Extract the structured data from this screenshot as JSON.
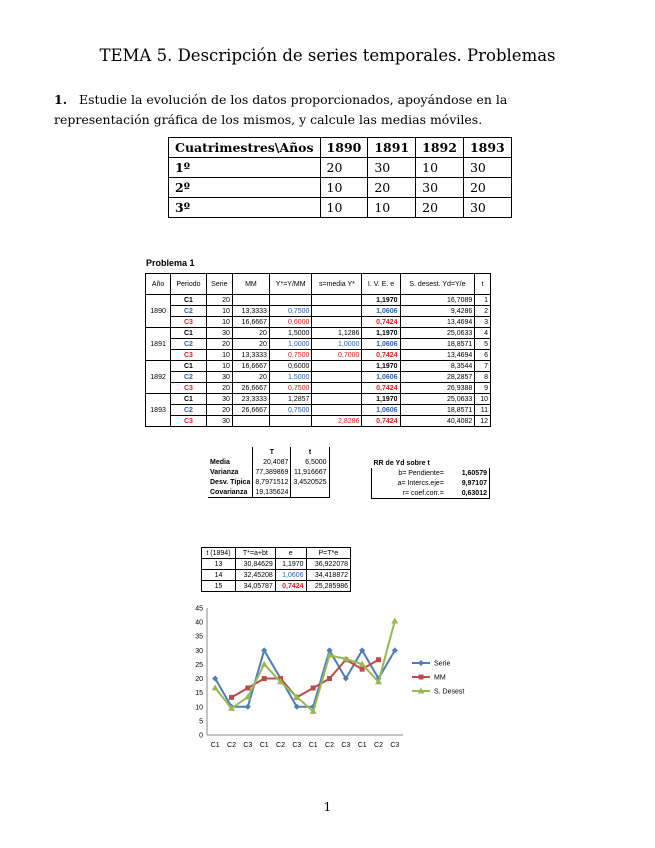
{
  "title": "TEMA 5. Descripción de series temporales. Problemas",
  "problem1": {
    "number": "1.",
    "text": "Estudie la evolución de los datos proporcionados, apoyándose en la representación gráfica de los mismos, y calcule las medias móviles."
  },
  "data_table": {
    "header": [
      "Cuatrimestres\\Años",
      "1890",
      "1891",
      "1892",
      "1893"
    ],
    "rows": [
      [
        "1º",
        "20",
        "30",
        "10",
        "30"
      ],
      [
        "2º",
        "10",
        "20",
        "30",
        "20"
      ],
      [
        "3º",
        "10",
        "10",
        "20",
        "30"
      ]
    ]
  },
  "sheet": {
    "title": "Problema 1",
    "headers": [
      "Año",
      "Periodo",
      "Serie",
      "MM",
      "Y*=Y/MM",
      "s=media Y*",
      "I. V. E. e",
      "S. desest. Yd=Y/e",
      "t"
    ],
    "years": [
      "1890",
      "1891",
      "1892",
      "1893"
    ],
    "rows": [
      [
        "C1",
        "20",
        "",
        "",
        "",
        "1,1970",
        "16,7089",
        "1"
      ],
      [
        "C2",
        "10",
        "13,3333",
        "0,7500",
        "",
        "1,0606",
        "9,4286",
        "2"
      ],
      [
        "C3",
        "10",
        "16,6667",
        "0,6000",
        "",
        "0,7424",
        "13,4694",
        "3"
      ],
      [
        "C1",
        "30",
        "20",
        "1,5000",
        "1,1286",
        "1,1970",
        "25,0633",
        "4"
      ],
      [
        "C2",
        "20",
        "20",
        "1,0000",
        "1,0000",
        "1,0606",
        "18,8571",
        "5"
      ],
      [
        "C3",
        "10",
        "13,3333",
        "0,7500",
        "0,7000",
        "0,7424",
        "13,4694",
        "6"
      ],
      [
        "C1",
        "10",
        "16,6667",
        "0,6000",
        "",
        "1,1970",
        "8,3544",
        "7"
      ],
      [
        "C2",
        "30",
        "20",
        "1,5000",
        "",
        "1,0606",
        "28,2857",
        "8"
      ],
      [
        "C3",
        "20",
        "26,6667",
        "0,7500",
        "",
        "0,7424",
        "26,9388",
        "9"
      ],
      [
        "C1",
        "30",
        "23,3333",
        "1,2857",
        "",
        "1,1970",
        "25,0633",
        "10"
      ],
      [
        "C2",
        "20",
        "26,6667",
        "0,7500",
        "",
        "1,0606",
        "18,8571",
        "11"
      ],
      [
        "C3",
        "30",
        "",
        "",
        "2,8286",
        "0,7424",
        "40,4082",
        "12"
      ]
    ]
  },
  "stats": {
    "headers": [
      "",
      "T",
      "t"
    ],
    "rows": [
      [
        "Media",
        "20,4087",
        "6,5000"
      ],
      [
        "Varianza",
        "77,389869",
        "11,916667"
      ],
      [
        "Desv. Típica",
        "8,7971512",
        "3,4520525"
      ],
      [
        "Covarianza",
        "19,135624",
        ""
      ]
    ]
  },
  "regression": {
    "title": "RR de Yd sobre t",
    "rows": [
      [
        "b= Pendiente=",
        "1,60579"
      ],
      [
        "a= Intercs.eje=",
        "9,97107"
      ],
      [
        "r= coef.corr.=",
        "0,63012"
      ]
    ]
  },
  "forecast": {
    "headers": [
      "t (1894)",
      "T*=a+bt",
      "e",
      "P=T*e"
    ],
    "rows": [
      [
        "13",
        "30,84629",
        "1,1970",
        "36,922078"
      ],
      [
        "14",
        "32,45208",
        "1,0606",
        "34,418872"
      ],
      [
        "15",
        "34,05787",
        "0,7424",
        "25,285986"
      ]
    ]
  },
  "chart_data": {
    "type": "line",
    "categories": [
      "C1",
      "C2",
      "C3",
      "C1",
      "C2",
      "C3",
      "C1",
      "C2",
      "C3",
      "C1",
      "C2",
      "C3"
    ],
    "ylim": [
      0,
      45
    ],
    "yticks": [
      0,
      5,
      10,
      15,
      20,
      25,
      30,
      35,
      40,
      45
    ],
    "grid": false,
    "legend": "right",
    "series": [
      {
        "name": "Serie",
        "color": "#4a7ebb",
        "marker": "diamond",
        "values": [
          20,
          10,
          10,
          30,
          20,
          10,
          10,
          30,
          20,
          30,
          20,
          30
        ]
      },
      {
        "name": "MM",
        "color": "#be4b48",
        "marker": "square",
        "values": [
          null,
          13.3333,
          16.6667,
          20,
          20,
          13.3333,
          16.6667,
          20,
          26.6667,
          23.3333,
          26.6667,
          null
        ]
      },
      {
        "name": "S. Desest",
        "color": "#98b954",
        "marker": "triangle",
        "values": [
          16.7089,
          9.4286,
          13.4694,
          25.0633,
          18.8571,
          13.4694,
          8.3544,
          28.2857,
          26.9388,
          25.0633,
          18.8571,
          40.4082
        ]
      }
    ]
  },
  "page_number": "1"
}
